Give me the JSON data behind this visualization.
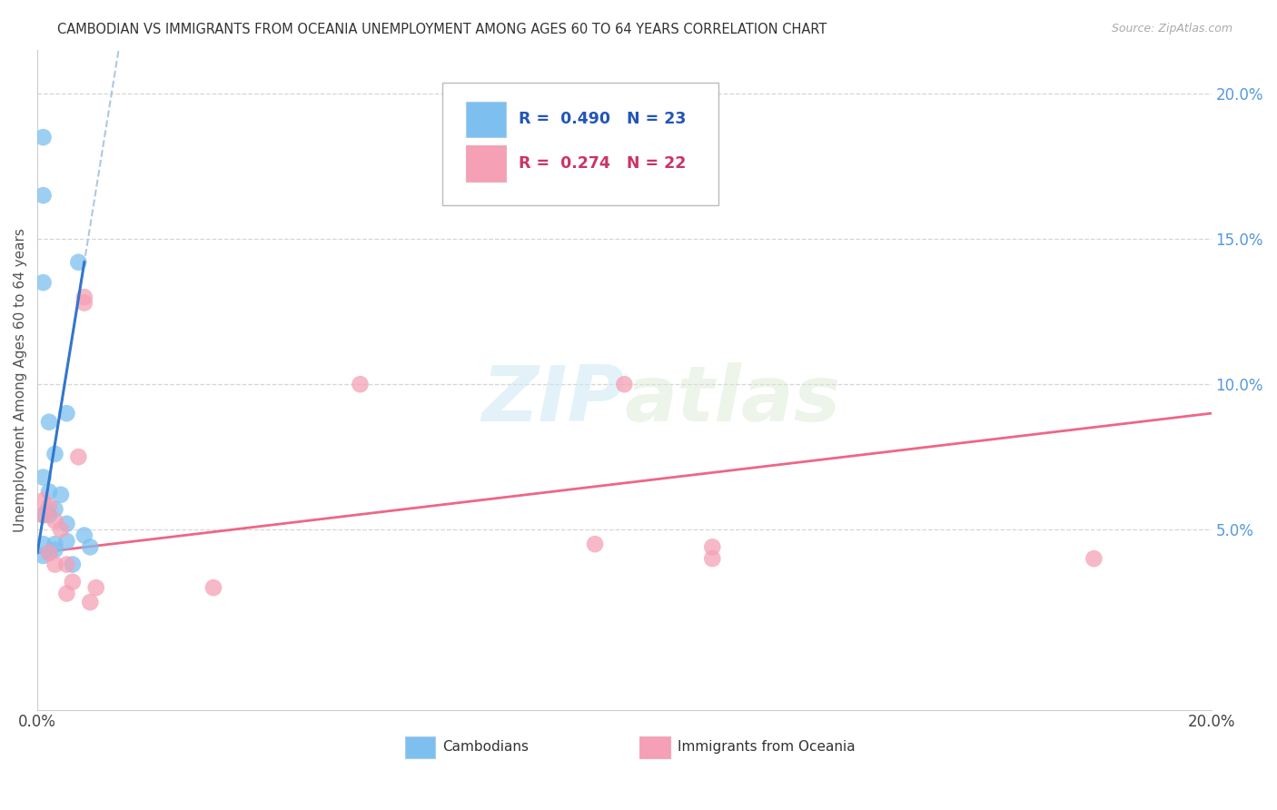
{
  "title": "CAMBODIAN VS IMMIGRANTS FROM OCEANIA UNEMPLOYMENT AMONG AGES 60 TO 64 YEARS CORRELATION CHART",
  "source": "Source: ZipAtlas.com",
  "ylabel": "Unemployment Among Ages 60 to 64 years",
  "right_yticks": [
    "20.0%",
    "15.0%",
    "10.0%",
    "5.0%"
  ],
  "right_ytick_vals": [
    0.2,
    0.15,
    0.1,
    0.05
  ],
  "xmin": 0.0,
  "xmax": 0.2,
  "ymin": -0.012,
  "ymax": 0.215,
  "cambodian_color": "#7dc0f0",
  "oceania_color": "#f5a0b5",
  "legend_label1": "Cambodians",
  "legend_label2": "Immigrants from Oceania",
  "watermark_zip": "ZIP",
  "watermark_atlas": "atlas",
  "grid_color": "#cccccc",
  "background_color": "#ffffff",
  "cam_line_color": "#3377cc",
  "cam_dash_color": "#99bbdd",
  "oce_line_color": "#ee6688",
  "cambodian_x": [
    0.001,
    0.001,
    0.001,
    0.001,
    0.001,
    0.001,
    0.001,
    0.002,
    0.002,
    0.002,
    0.002,
    0.003,
    0.003,
    0.003,
    0.003,
    0.004,
    0.005,
    0.005,
    0.005,
    0.006,
    0.007,
    0.008,
    0.009
  ],
  "cambodian_y": [
    0.185,
    0.165,
    0.135,
    0.068,
    0.055,
    0.045,
    0.041,
    0.087,
    0.063,
    0.055,
    0.042,
    0.076,
    0.057,
    0.045,
    0.043,
    0.062,
    0.09,
    0.052,
    0.046,
    0.038,
    0.142,
    0.048,
    0.044
  ],
  "oceania_x": [
    0.001,
    0.001,
    0.002,
    0.002,
    0.003,
    0.003,
    0.004,
    0.005,
    0.005,
    0.006,
    0.007,
    0.008,
    0.008,
    0.009,
    0.01,
    0.03,
    0.055,
    0.095,
    0.1,
    0.115,
    0.115,
    0.18
  ],
  "oceania_y": [
    0.06,
    0.055,
    0.058,
    0.042,
    0.053,
    0.038,
    0.05,
    0.038,
    0.028,
    0.032,
    0.075,
    0.128,
    0.13,
    0.025,
    0.03,
    0.03,
    0.1,
    0.045,
    0.1,
    0.044,
    0.04,
    0.04
  ]
}
